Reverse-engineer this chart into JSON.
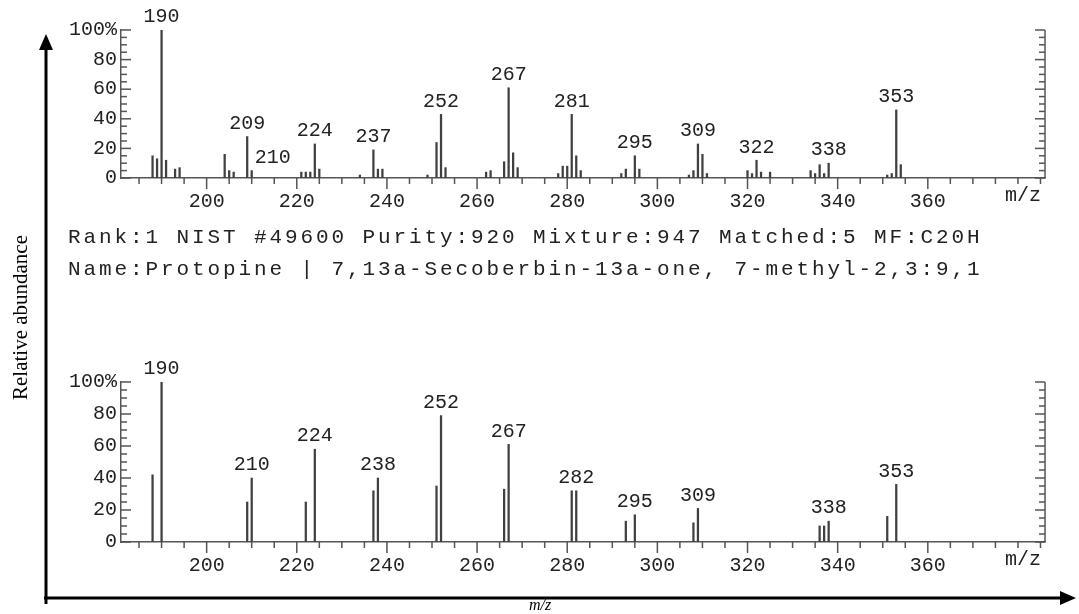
{
  "chart_data": [
    {
      "type": "bar",
      "ylabel": "Relative abundance",
      "xlabel": "m/z",
      "color": "#404040",
      "x": [
        188,
        189,
        190,
        191,
        193,
        194,
        204,
        205,
        206,
        209,
        210,
        221,
        222,
        223,
        224,
        225,
        234,
        237,
        238,
        239,
        249,
        251,
        252,
        253,
        262,
        263,
        266,
        267,
        268,
        269,
        278,
        279,
        280,
        281,
        282,
        283,
        292,
        293,
        295,
        296,
        307,
        308,
        309,
        310,
        311,
        320,
        321,
        322,
        323,
        325,
        334,
        335,
        336,
        337,
        338,
        345,
        351,
        352,
        353,
        354
      ],
      "values": [
        15,
        13,
        100,
        12,
        6,
        7,
        16,
        5,
        4,
        28,
        5,
        4,
        4,
        4,
        23,
        6,
        2,
        19,
        6,
        6,
        2,
        24,
        43,
        7,
        4,
        5,
        11,
        61,
        17,
        7,
        3,
        8,
        8,
        43,
        15,
        5,
        3,
        6,
        15,
        6,
        2,
        5,
        23,
        16,
        3,
        5,
        3,
        12,
        4,
        4,
        5,
        3,
        9,
        3,
        10,
        null,
        2,
        3,
        46,
        9
      ],
      "xlim": [
        181,
        386
      ],
      "xticks": [
        {
          "value": 185,
          "label": null
        },
        {
          "value": 190,
          "label": null
        },
        {
          "value": 195,
          "label": null
        },
        200,
        {
          "value": 205,
          "label": null
        },
        {
          "value": 210,
          "label": null
        },
        {
          "value": 215,
          "label": null
        },
        220,
        {
          "value": 225,
          "label": null
        },
        {
          "value": 230,
          "label": null
        },
        {
          "value": 235,
          "label": null
        },
        240,
        {
          "value": 245,
          "label": null
        },
        {
          "value": 250,
          "label": null
        },
        {
          "value": 255,
          "label": null
        },
        260,
        {
          "value": 265,
          "label": null
        },
        {
          "value": 270,
          "label": null
        },
        {
          "value": 275,
          "label": null
        },
        280,
        {
          "value": 285,
          "label": null
        },
        {
          "value": 290,
          "label": null
        },
        {
          "value": 295,
          "label": null
        },
        300,
        {
          "value": 305,
          "label": null
        },
        {
          "value": 310,
          "label": null
        },
        {
          "value": 315,
          "label": null
        },
        320,
        {
          "value": 325,
          "label": null
        },
        {
          "value": 330,
          "label": null
        },
        {
          "value": 335,
          "label": null
        },
        340,
        {
          "value": 345,
          "label": null
        },
        {
          "value": 350,
          "label": null
        },
        {
          "value": 355,
          "label": null
        },
        360,
        {
          "value": 365,
          "label": null
        },
        {
          "value": 370,
          "label": null
        },
        {
          "value": 375,
          "label": null
        },
        {
          "value": 380,
          "label": null
        },
        {
          "value": 385,
          "label": null
        }
      ],
      "ylim": [
        0,
        100
      ],
      "yticks": [
        0,
        {
          "value": 5,
          "label": null
        },
        {
          "value": 10,
          "label": null
        },
        {
          "value": 15,
          "label": null
        },
        20,
        {
          "value": 25,
          "label": null
        },
        {
          "value": 30,
          "label": null
        },
        {
          "value": 35,
          "label": null
        },
        40,
        {
          "value": 45,
          "label": null
        },
        {
          "value": 50,
          "label": null
        },
        {
          "value": 55,
          "label": null
        },
        60,
        {
          "value": 65,
          "label": null
        },
        {
          "value": 70,
          "label": null
        },
        {
          "value": 75,
          "label": null
        },
        80,
        {
          "value": 85,
          "label": null
        },
        {
          "value": 90,
          "label": null
        },
        {
          "value": 95,
          "label": null
        },
        {
          "value": 100,
          "label": "100%"
        }
      ],
      "annotations": [
        "Rank:1 NIST #49600 Purity:920 Mixture:947 Matched:5 MF:C20H",
        "Name:Protopine | 7,13a-Secoberbin-13a-one, 7-methyl-2,3:9,1",
        {
          "text": "190",
          "x": 190,
          "y": 100
        },
        {
          "text": "209",
          "x": 209,
          "y": 28
        },
        {
          "text": "210",
          "x": 210,
          "y": 5
        },
        {
          "text": "224",
          "x": 224,
          "y": 23
        },
        {
          "text": "237",
          "x": 237,
          "y": 19
        },
        {
          "text": "252",
          "x": 252,
          "y": 43
        },
        {
          "text": "267",
          "x": 267,
          "y": 61
        },
        {
          "text": "281",
          "x": 281,
          "y": 43
        },
        {
          "text": "295",
          "x": 295,
          "y": 15
        },
        {
          "text": "309",
          "x": 309,
          "y": 23
        },
        {
          "text": "322",
          "x": 322,
          "y": 12
        },
        {
          "text": "338",
          "x": 338,
          "y": 10
        },
        {
          "text": "353",
          "x": 353,
          "y": 46
        }
      ]
    },
    {
      "type": "bar",
      "xlabel": "m/z",
      "color": "#404040",
      "x": [
        188,
        190,
        209,
        210,
        222,
        224,
        237,
        238,
        251,
        252,
        266,
        267,
        281,
        282,
        293,
        295,
        308,
        309,
        336,
        337,
        338,
        351,
        353
      ],
      "values": [
        42,
        100,
        25,
        40,
        25,
        58,
        32,
        40,
        35,
        79,
        33,
        61,
        32,
        32,
        13,
        17,
        12,
        21,
        10,
        10,
        13,
        16,
        36
      ],
      "xlim": [
        181,
        386
      ],
      "xticks": [
        {
          "value": 185,
          "label": null
        },
        {
          "value": 190,
          "label": null
        },
        {
          "value": 195,
          "label": null
        },
        200,
        {
          "value": 205,
          "label": null
        },
        {
          "value": 210,
          "label": null
        },
        {
          "value": 215,
          "label": null
        },
        220,
        {
          "value": 225,
          "label": null
        },
        {
          "value": 230,
          "label": null
        },
        {
          "value": 235,
          "label": null
        },
        240,
        {
          "value": 245,
          "label": null
        },
        {
          "value": 250,
          "label": null
        },
        {
          "value": 255,
          "label": null
        },
        260,
        {
          "value": 265,
          "label": null
        },
        {
          "value": 270,
          "label": null
        },
        {
          "value": 275,
          "label": null
        },
        280,
        {
          "value": 285,
          "label": null
        },
        {
          "value": 290,
          "label": null
        },
        {
          "value": 295,
          "label": null
        },
        300,
        {
          "value": 305,
          "label": null
        },
        {
          "value": 310,
          "label": null
        },
        {
          "value": 315,
          "label": null
        },
        320,
        {
          "value": 325,
          "label": null
        },
        {
          "value": 330,
          "label": null
        },
        {
          "value": 335,
          "label": null
        },
        340,
        {
          "value": 345,
          "label": null
        },
        {
          "value": 350,
          "label": null
        },
        {
          "value": 355,
          "label": null
        },
        360,
        {
          "value": 365,
          "label": null
        },
        {
          "value": 370,
          "label": null
        },
        {
          "value": 375,
          "label": null
        },
        {
          "value": 380,
          "label": null
        },
        {
          "value": 385,
          "label": null
        }
      ],
      "ylim": [
        0,
        100
      ],
      "yticks": [
        0,
        {
          "value": 5,
          "label": null
        },
        {
          "value": 10,
          "label": null
        },
        {
          "value": 15,
          "label": null
        },
        20,
        {
          "value": 25,
          "label": null
        },
        {
          "value": 30,
          "label": null
        },
        {
          "value": 35,
          "label": null
        },
        40,
        {
          "value": 45,
          "label": null
        },
        {
          "value": 50,
          "label": null
        },
        {
          "value": 55,
          "label": null
        },
        60,
        {
          "value": 65,
          "label": null
        },
        {
          "value": 70,
          "label": null
        },
        {
          "value": 75,
          "label": null
        },
        80,
        {
          "value": 85,
          "label": null
        },
        {
          "value": 90,
          "label": null
        },
        {
          "value": 95,
          "label": null
        },
        {
          "value": 100,
          "label": "100%"
        }
      ],
      "annotations": [
        "m/z",
        {
          "text": "190",
          "x": 190,
          "y": 100
        },
        {
          "text": "210",
          "x": 210,
          "y": 40
        },
        {
          "text": "224",
          "x": 224,
          "y": 58
        },
        {
          "text": "238",
          "x": 238,
          "y": 40
        },
        {
          "text": "252",
          "x": 252,
          "y": 79
        },
        {
          "text": "267",
          "x": 267,
          "y": 61
        },
        {
          "text": "282",
          "x": 282,
          "y": 32
        },
        {
          "text": "295",
          "x": 295,
          "y": 17
        },
        {
          "text": "309",
          "x": 309,
          "y": 21
        },
        {
          "text": "338",
          "x": 338,
          "y": 13
        },
        {
          "text": "353",
          "x": 353,
          "y": 36
        }
      ]
    }
  ]
}
